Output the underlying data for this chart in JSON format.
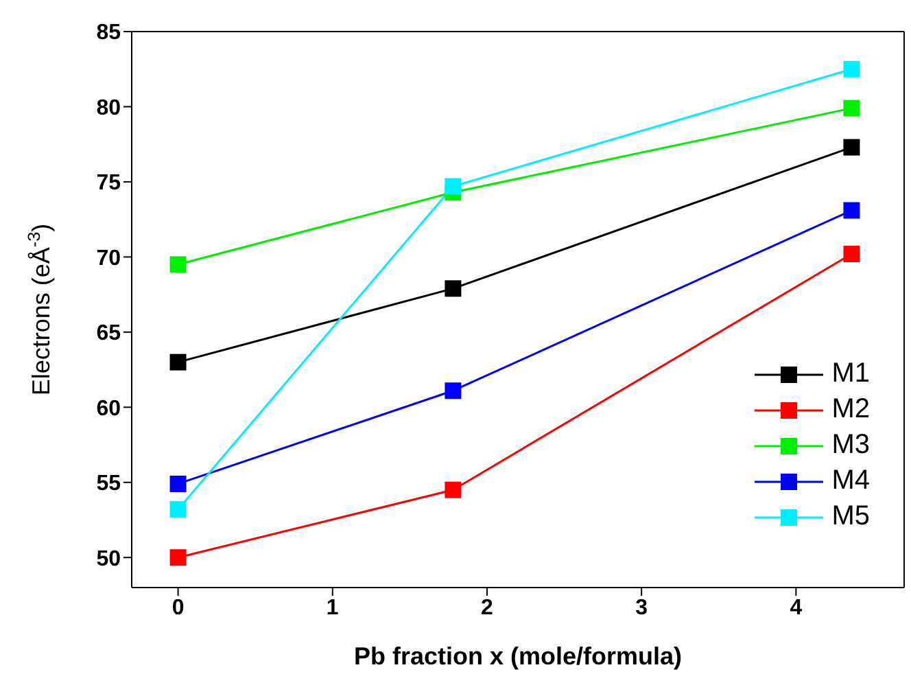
{
  "chart_data": {
    "type": "line",
    "xlabel": "Pb fraction x (mole/formula)",
    "ylabel": "Electrons (eÅ$^{-3}$)",
    "x": [
      0,
      1.78,
      4.36
    ],
    "series": [
      {
        "name": "M1",
        "color": "#000000",
        "values": [
          63.0,
          67.9,
          77.3
        ]
      },
      {
        "name": "M2",
        "color": "#ff0000",
        "values": [
          50,
          54.5,
          70.2
        ]
      },
      {
        "name": "M3",
        "color": "#00ee00",
        "values": [
          69.5,
          74.3,
          79.9
        ]
      },
      {
        "name": "M4",
        "color": "#0000ff",
        "values": [
          54.9,
          61.1,
          73.1
        ]
      },
      {
        "name": "M5",
        "color": "#00eeff",
        "values": [
          53.2,
          74.7,
          82.5
        ]
      }
    ],
    "xlim": [
      -0.3,
      4.7
    ],
    "xticks": [
      0,
      1,
      2,
      3,
      4
    ],
    "ylim": [
      48,
      85
    ],
    "yticks": [
      50,
      55,
      60,
      65,
      70,
      75,
      80,
      85
    ],
    "marker": "square",
    "line_style": "solid",
    "legend": "bottom right",
    "grid": false
  }
}
